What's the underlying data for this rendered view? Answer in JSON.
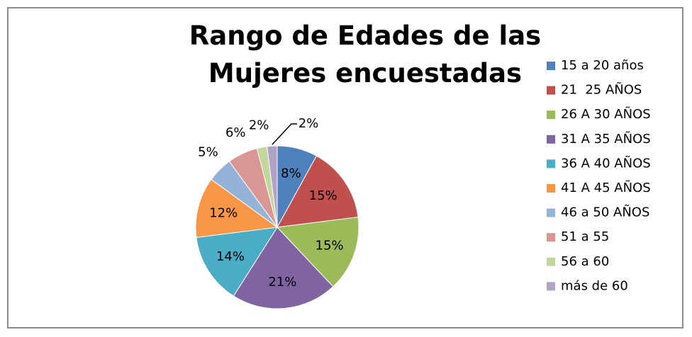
{
  "chart_data": {
    "type": "pie",
    "title": "Rango de Edades de las Mujeres encuestadas",
    "categories": [
      "15 a 20 años",
      "21  25 AÑOS",
      "26 A 30 AÑOS",
      "31 A 35 AÑOS",
      "36 A 40 AÑOS",
      "41 A 45 AÑOS",
      "46 a 50 AÑOS",
      "51 a 55",
      "56 a 60",
      "más de 60"
    ],
    "values": [
      8,
      15,
      15,
      21,
      14,
      12,
      5,
      6,
      2,
      2
    ],
    "value_labels": [
      "8%",
      "15%",
      "15%",
      "21%",
      "14%",
      "12%",
      "5%",
      "6%",
      "2%",
      "2%"
    ],
    "colors": [
      "#4f81bd",
      "#c0504d",
      "#9bbb59",
      "#8064a2",
      "#4bacc6",
      "#f79646",
      "#95b3d7",
      "#d99694",
      "#c3d69b",
      "#b2a2c7"
    ],
    "legend": "right"
  }
}
